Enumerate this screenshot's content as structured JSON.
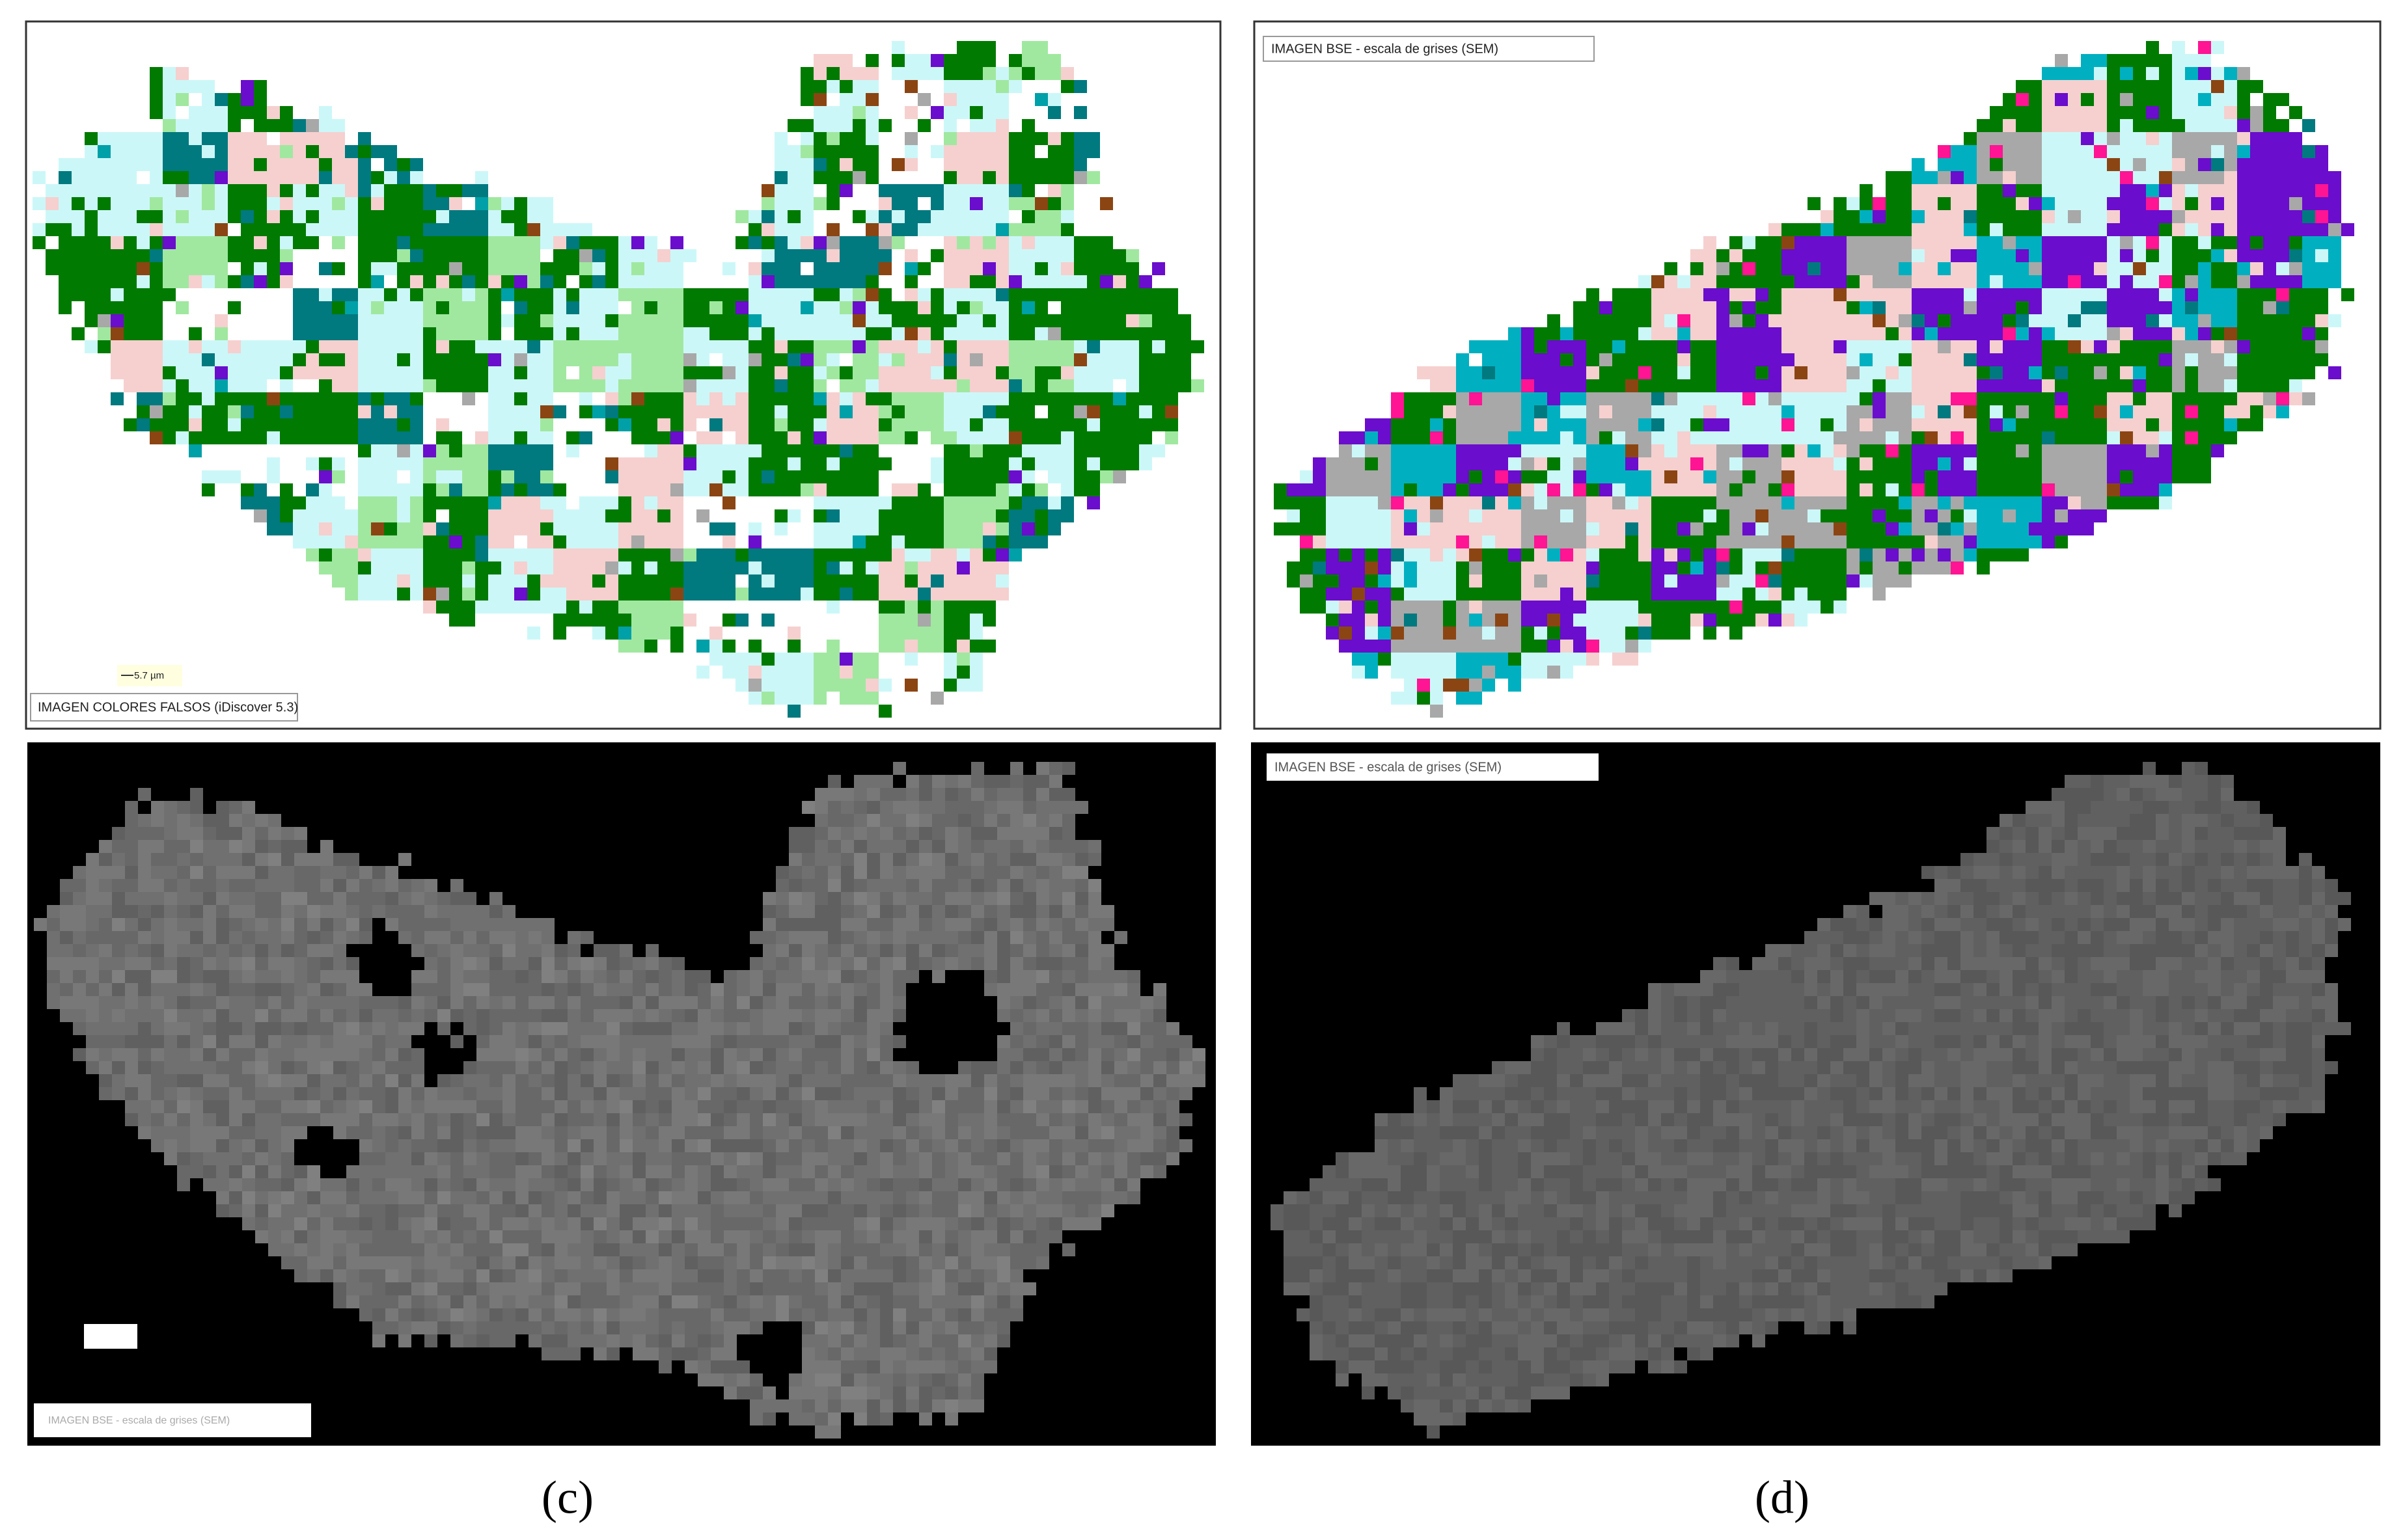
{
  "panels": [
    {
      "label": "IMAGEN COLORES FALSOS (iDiscover 5.3)",
      "scale_bar": "5.7 µm"
    },
    {
      "label": "IMAGEN BSE - escala de grises (SEM)"
    },
    {
      "label": "IMAGEN BSE - escala de grises (SEM)"
    },
    {
      "label": "IMAGEN BSE - escala de grises (SEM)"
    }
  ],
  "captions": [
    "(c)",
    "(d)"
  ]
}
